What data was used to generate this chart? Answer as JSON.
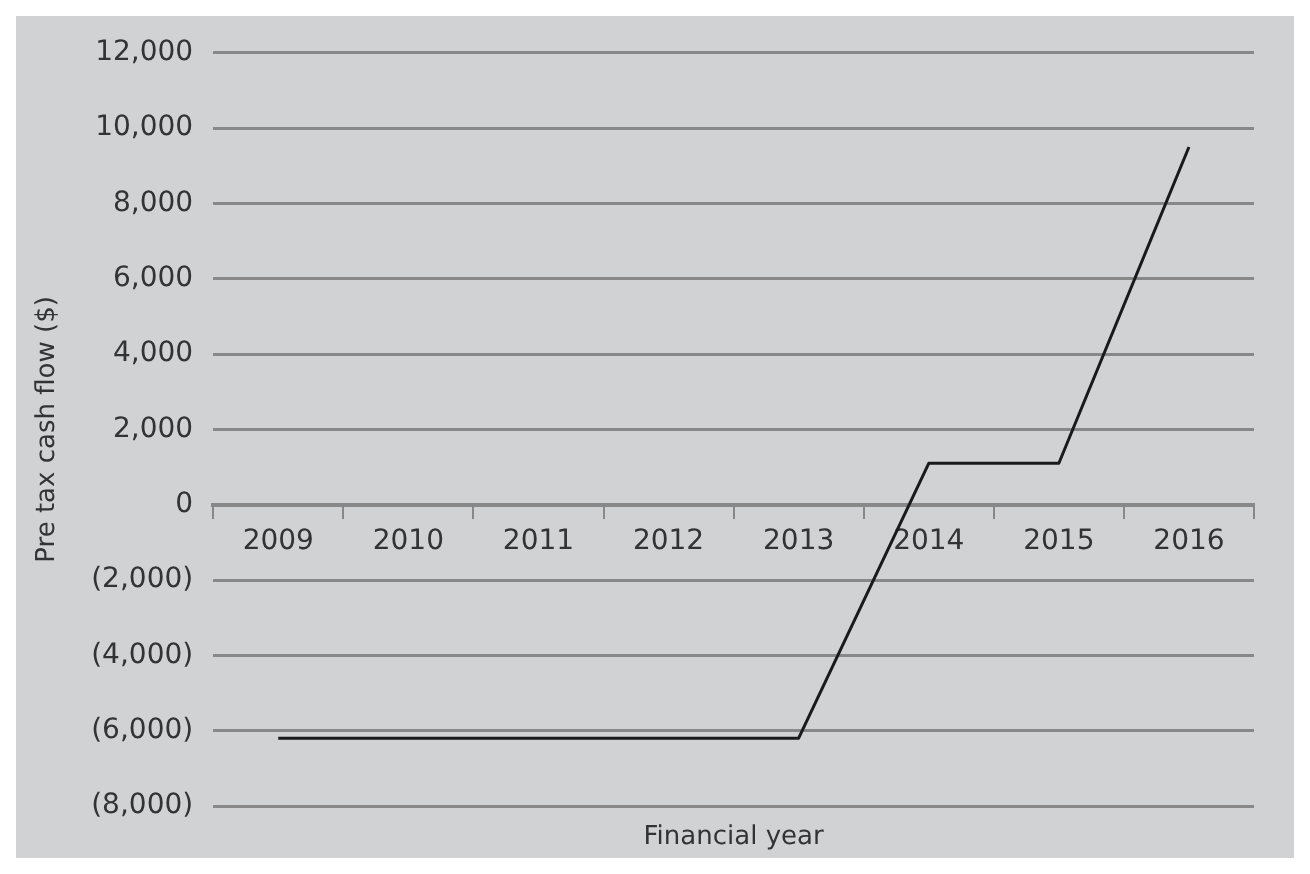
{
  "chart_data": {
    "type": "line",
    "categories": [
      "2009",
      "2010",
      "2011",
      "2012",
      "2013",
      "2014",
      "2015",
      "2016"
    ],
    "series": [
      {
        "color": "#1a1a1a",
        "values": [
          -6200,
          -6200,
          -6200,
          -6200,
          -6200,
          1100,
          1100,
          9500
        ]
      }
    ],
    "ylabel": "Pre tax cash flow ($)",
    "xlabel": "Financial year",
    "ylim": [
      -8000,
      12000
    ],
    "yticks": [
      {
        "value": -8000,
        "label": "(8,000)"
      },
      {
        "value": -6000,
        "label": "(6,000)"
      },
      {
        "value": -4000,
        "label": "(4,000)"
      },
      {
        "value": -2000,
        "label": "(2,000)"
      },
      {
        "value": 0,
        "label": "0"
      },
      {
        "value": 2000,
        "label": "2,000"
      },
      {
        "value": 4000,
        "label": "4,000"
      },
      {
        "value": 6000,
        "label": "6,000"
      },
      {
        "value": 8000,
        "label": "8,000"
      },
      {
        "value": 10000,
        "label": "10,000"
      },
      {
        "value": 12000,
        "label": "12,000"
      }
    ],
    "grid": "y",
    "marker": "none",
    "line_style": "solid"
  }
}
